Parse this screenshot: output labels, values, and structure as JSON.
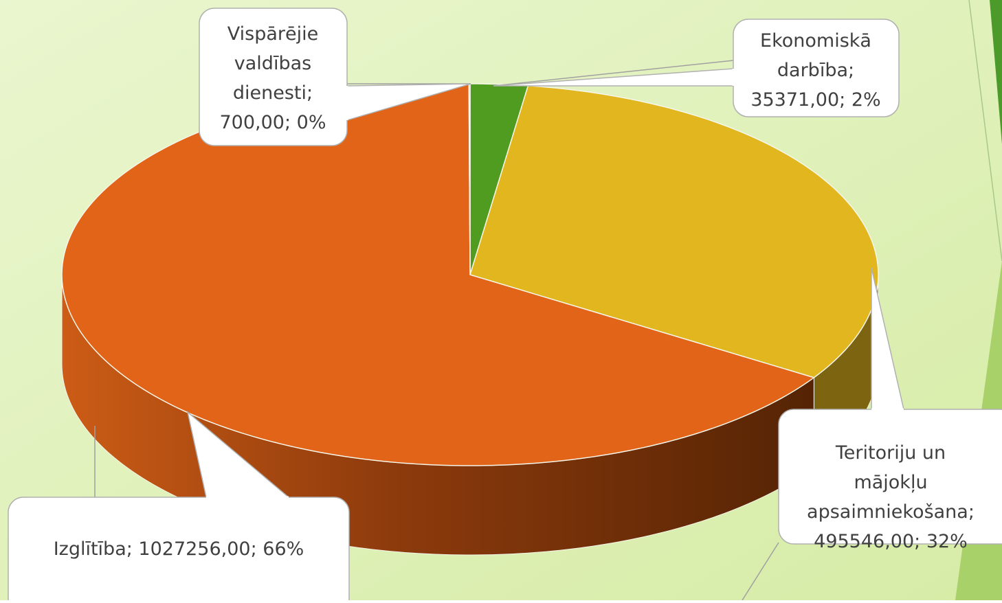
{
  "chart_data": {
    "type": "pie3d",
    "values": [
      35371,
      495546,
      1027256,
      700
    ],
    "value_labels": [
      "Ekonomiskā darbība; 35371,00; 2%",
      "Teritoriju un mājokļu apsaimniekošana; 495546,00; 32%",
      "Izglītība; 1027256,00; 66%",
      "Vispārējie valdības dienesti; 700,00; 0%"
    ],
    "colors": [
      "#4f9c21",
      "#e1b61e",
      "#e16418",
      "#8a8a8a"
    ]
  }
}
